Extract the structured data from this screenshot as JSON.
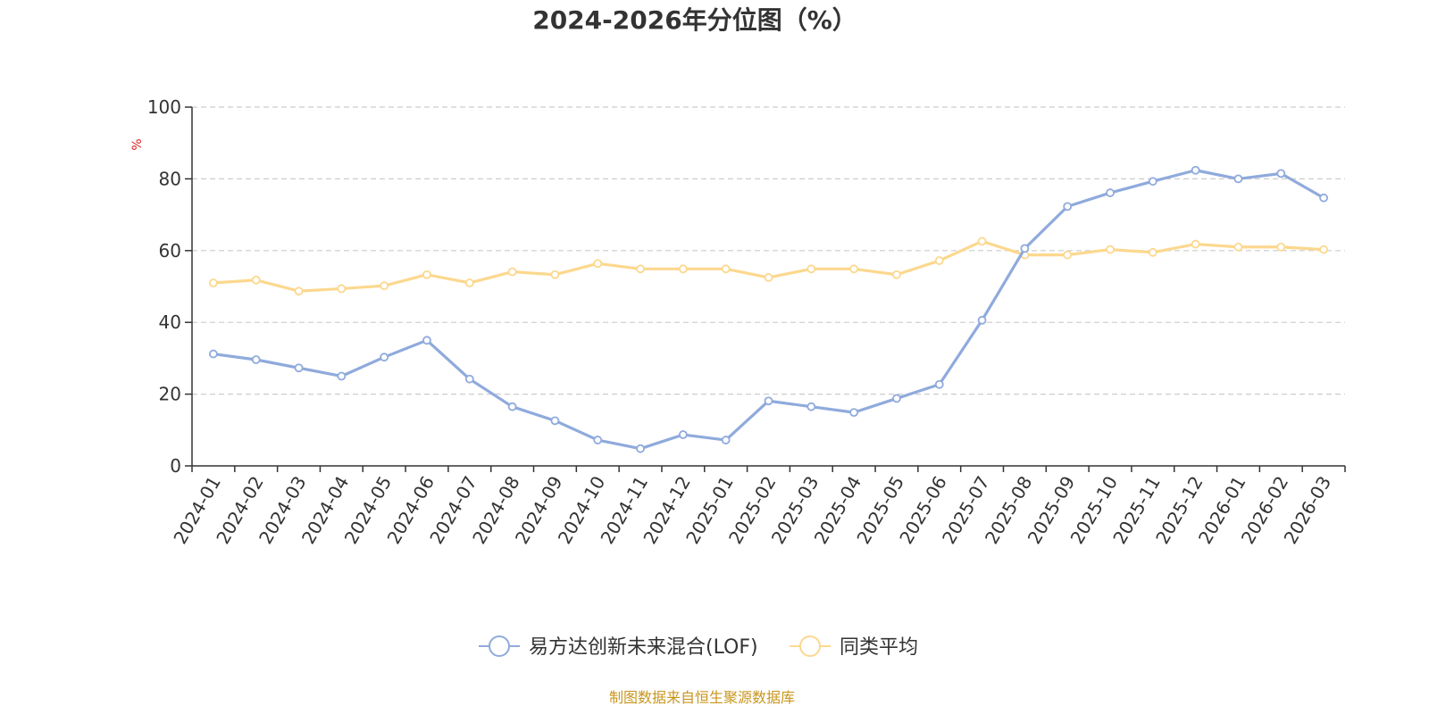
{
  "chart_data": {
    "type": "line",
    "title": "2024-2026年分位图（%）",
    "ylabel": "%",
    "xlabel": "",
    "ylim": [
      0,
      100
    ],
    "yticks": [
      0,
      20,
      40,
      60,
      80,
      100
    ],
    "grid": true,
    "legend_position": "bottom",
    "categories": [
      "2024-01",
      "2024-02",
      "2024-03",
      "2024-04",
      "2024-05",
      "2024-06",
      "2024-07",
      "2024-08",
      "2024-09",
      "2024-10",
      "2024-11",
      "2024-12",
      "2025-01",
      "2025-02",
      "2025-03",
      "2025-04",
      "2025-05",
      "2025-06",
      "2025-07",
      "2025-08",
      "2025-09",
      "2025-10",
      "2025-11",
      "2025-12",
      "2026-01",
      "2026-02",
      "2026-03"
    ],
    "series": [
      {
        "name": "易方达创新未来混合(LOF)",
        "color": "#8faadc",
        "values": [
          31.2,
          29.6,
          27.3,
          25.0,
          30.3,
          35.0,
          24.2,
          16.5,
          12.6,
          7.2,
          4.8,
          8.7,
          7.2,
          18.1,
          16.5,
          14.9,
          18.8,
          22.7,
          40.6,
          60.6,
          72.3,
          76.1,
          79.3,
          82.4,
          80.0,
          81.5,
          74.7
        ]
      },
      {
        "name": "同类平均",
        "color": "#fcd88e",
        "values": [
          51.0,
          51.8,
          48.7,
          49.4,
          50.2,
          53.3,
          51.0,
          54.1,
          53.3,
          56.4,
          54.9,
          54.9,
          54.9,
          52.5,
          54.9,
          54.9,
          53.3,
          57.2,
          62.6,
          58.8,
          58.8,
          60.3,
          59.5,
          61.8,
          61.0,
          61.0,
          60.3
        ]
      }
    ]
  },
  "footer": {
    "source": "制图数据来自恒生聚源数据库",
    "source_color": "#c8961e"
  },
  "axis": {
    "unit_color": "#dd2222"
  }
}
